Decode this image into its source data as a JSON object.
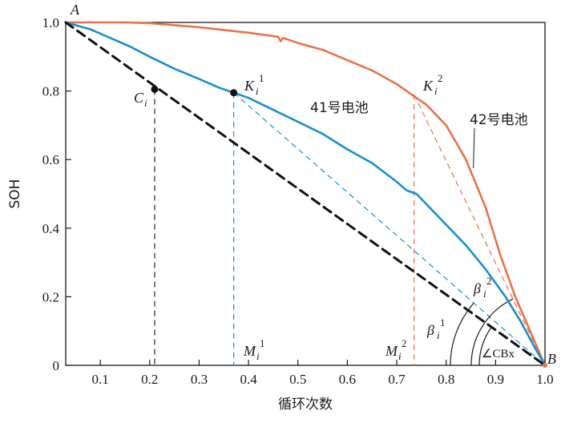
{
  "chart_data": {
    "type": "line",
    "title": "",
    "xlabel": "循环次数",
    "ylabel": "SOH",
    "xlim": [
      0.03,
      1.0
    ],
    "ylim": [
      0,
      1.0
    ],
    "x_ticks": [
      0.1,
      0.2,
      0.3,
      0.4,
      0.5,
      0.6,
      0.7,
      0.8,
      0.9,
      1.0
    ],
    "x_tick_labels": [
      "0.1",
      "0.2",
      "0.3",
      "0.4",
      "0.5",
      "0.6",
      "0.7",
      "0.8",
      "0.9",
      "1.0"
    ],
    "y_ticks": [
      0,
      0.2,
      0.4,
      0.6,
      0.8,
      1.0
    ],
    "y_tick_labels": [
      "0",
      "0.2",
      "0.4",
      "0.6",
      "0.8",
      "1.0"
    ],
    "grid": false,
    "series": [
      {
        "name": "42号电池",
        "color": "#e8734a",
        "style": "solid",
        "x": [
          0.03,
          0.1,
          0.15,
          0.2,
          0.25,
          0.3,
          0.35,
          0.4,
          0.45,
          0.46,
          0.465,
          0.47,
          0.5,
          0.55,
          0.6,
          0.65,
          0.7,
          0.73,
          0.76,
          0.8,
          0.84,
          0.88,
          0.91,
          0.94,
          0.97,
          1.0
        ],
        "y": [
          1.0,
          1.0,
          1.0,
          0.998,
          0.992,
          0.986,
          0.978,
          0.97,
          0.96,
          0.958,
          0.945,
          0.955,
          0.94,
          0.92,
          0.89,
          0.86,
          0.82,
          0.79,
          0.76,
          0.7,
          0.6,
          0.46,
          0.32,
          0.2,
          0.1,
          0.0
        ]
      },
      {
        "name": "41号电池",
        "color": "#1a8fcf",
        "style": "solid",
        "x": [
          0.03,
          0.08,
          0.12,
          0.16,
          0.2,
          0.25,
          0.3,
          0.34,
          0.37,
          0.4,
          0.45,
          0.5,
          0.55,
          0.6,
          0.65,
          0.7,
          0.72,
          0.74,
          0.76,
          0.8,
          0.84,
          0.88,
          0.92,
          0.95,
          0.98,
          1.0
        ],
        "y": [
          1.0,
          0.98,
          0.955,
          0.93,
          0.9,
          0.865,
          0.835,
          0.81,
          0.795,
          0.78,
          0.745,
          0.71,
          0.675,
          0.63,
          0.59,
          0.535,
          0.51,
          0.5,
          0.47,
          0.41,
          0.35,
          0.28,
          0.2,
          0.13,
          0.05,
          0.0
        ]
      },
      {
        "name": "AB",
        "color": "#111111",
        "style": "dashed",
        "x": [
          0.03,
          1.0
        ],
        "y": [
          1.0,
          0.0
        ]
      }
    ],
    "points": [
      {
        "label": "A",
        "x": 0.03,
        "y": 1.0
      },
      {
        "label": "B",
        "x": 1.0,
        "y": 0.0
      },
      {
        "label": "C",
        "sub": "i",
        "x": 0.21,
        "y": 0.805
      },
      {
        "label": "K",
        "sub": "i",
        "sup": "1",
        "x": 0.37,
        "y": 0.795
      },
      {
        "label": "K",
        "sub": "i",
        "sup": "2",
        "x": 0.735,
        "y": 0.79
      },
      {
        "label": "M",
        "sub": "i",
        "sup": "1",
        "x": 0.37,
        "y": 0.0
      },
      {
        "label": "M",
        "sub": "i",
        "sup": "2",
        "x": 0.735,
        "y": 0.0
      }
    ],
    "annotations": {
      "A": "A",
      "B": "B",
      "C_main": "C",
      "C_sub": "i",
      "K1_main": "K",
      "K1_sub": "i",
      "K1_sup": "1",
      "K2_main": "K",
      "K2_sub": "i",
      "K2_sup": "2",
      "M1_main": "M",
      "M1_sub": "i",
      "M1_sup": "1",
      "M2_main": "M",
      "M2_sub": "i",
      "M2_sup": "2",
      "beta1_main": "β",
      "beta1_sub": "i",
      "beta1_sup": "1",
      "beta2_main": "β",
      "beta2_sub": "i",
      "beta2_sup": "2",
      "angle_cbx": "∠CBx",
      "series41_label": "41号电池",
      "series42_label": "42号电池"
    }
  }
}
